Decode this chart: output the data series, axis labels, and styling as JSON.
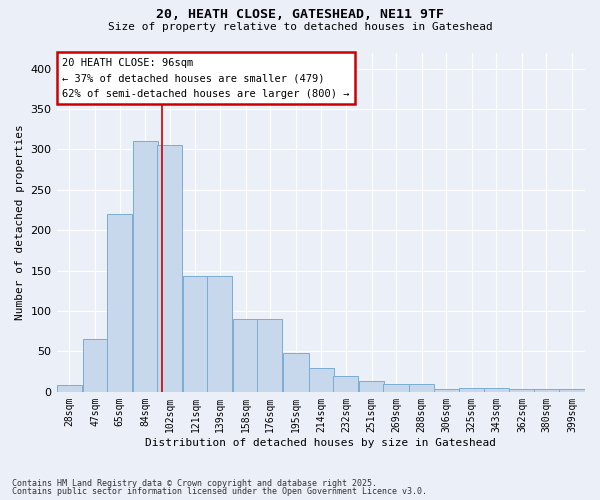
{
  "title_line1": "20, HEATH CLOSE, GATESHEAD, NE11 9TF",
  "title_line2": "Size of property relative to detached houses in Gateshead",
  "xlabel": "Distribution of detached houses by size in Gateshead",
  "ylabel": "Number of detached properties",
  "categories": [
    "28sqm",
    "47sqm",
    "65sqm",
    "84sqm",
    "102sqm",
    "121sqm",
    "139sqm",
    "158sqm",
    "176sqm",
    "195sqm",
    "214sqm",
    "232sqm",
    "251sqm",
    "269sqm",
    "288sqm",
    "306sqm",
    "325sqm",
    "343sqm",
    "362sqm",
    "380sqm",
    "399sqm"
  ],
  "bin_centers": [
    28,
    47,
    65,
    84,
    102,
    121,
    139,
    158,
    176,
    195,
    214,
    232,
    251,
    269,
    288,
    306,
    325,
    343,
    362,
    380,
    399
  ],
  "bar_heights": [
    8,
    65,
    220,
    310,
    305,
    143,
    143,
    90,
    90,
    48,
    30,
    20,
    13,
    10,
    10,
    4,
    5,
    5,
    3,
    3,
    4
  ],
  "bar_color": "#c8d8ec",
  "bar_edge_color": "#7aadd4",
  "background_color": "#eaeff8",
  "grid_color": "#ffffff",
  "annotation_text": "20 HEATH CLOSE: 96sqm\n← 37% of detached houses are smaller (479)\n62% of semi-detached houses are larger (800) →",
  "annotation_box_facecolor": "#ffffff",
  "annotation_box_edgecolor": "#cc0000",
  "red_line_x": 96,
  "ylim": [
    0,
    420
  ],
  "yticks": [
    0,
    50,
    100,
    150,
    200,
    250,
    300,
    350,
    400
  ],
  "footnote_line1": "Contains HM Land Registry data © Crown copyright and database right 2025.",
  "footnote_line2": "Contains public sector information licensed under the Open Government Licence v3.0."
}
